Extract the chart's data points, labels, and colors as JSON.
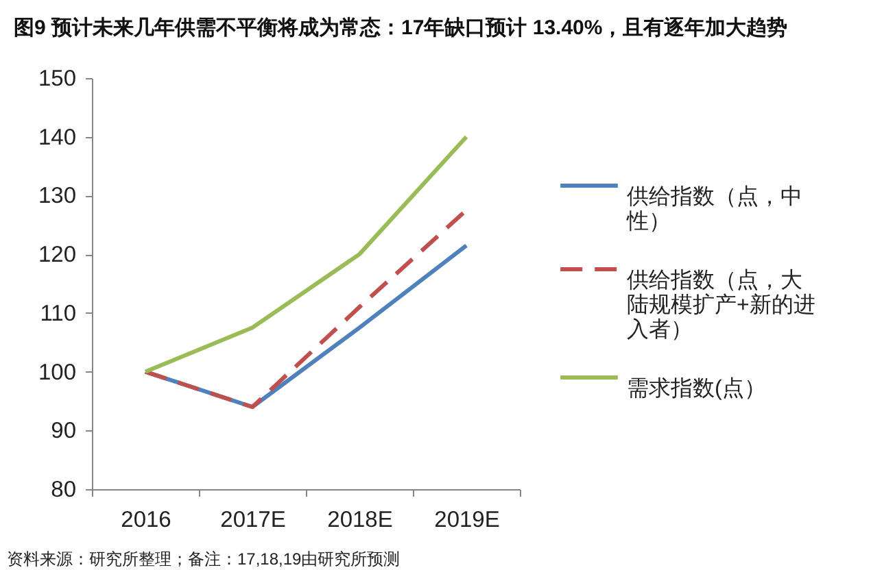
{
  "chart_data": {
    "type": "line",
    "title": "图9  预计未来几年供需不平衡将成为常态：17年缺口预计 13.40%，且有逐年加大趋势",
    "categories": [
      "2016",
      "2017E",
      "2018E",
      "2019E"
    ],
    "series": [
      {
        "name": "供给指数（点，中性）",
        "color": "#4f81bd",
        "values": [
          100,
          94,
          107.5,
          121.5
        ],
        "line_style": "solid"
      },
      {
        "name": "供给指数（点，大陆规模扩产+新的进入者）",
        "color": "#c0504d",
        "values": [
          100,
          94,
          111,
          127.5
        ],
        "line_style": "dashed"
      },
      {
        "name": "需求指数(点）",
        "color": "#9bbb59",
        "values": [
          100,
          107.5,
          120,
          140
        ],
        "line_style": "solid"
      }
    ],
    "ylim": [
      80,
      150
    ],
    "yticks": [
      80,
      90,
      100,
      110,
      120,
      130,
      140,
      150
    ],
    "legend": "right",
    "annotations": [
      "资料来源：研究所整理；备注：17,18,19由研究所预测"
    ]
  }
}
